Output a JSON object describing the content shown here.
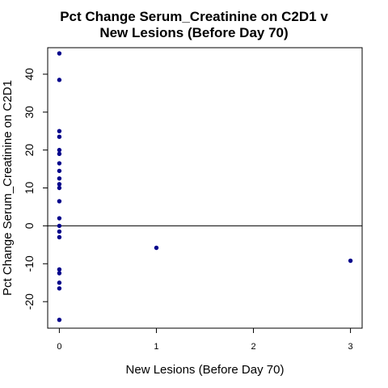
{
  "chart_data": {
    "type": "scatter",
    "title": "Pct Change Serum_Creatinine on C2D1 v\nNew Lesions (Before Day 70)",
    "xlabel": "New Lesions (Before Day 70)",
    "ylabel": "Pct Change Serum_Creatinine on C2D1",
    "xlim": [
      -0.12,
      3.12
    ],
    "ylim": [
      -27,
      47
    ],
    "x_ticks": [
      0,
      1,
      2,
      3
    ],
    "y_ticks": [
      -20,
      -10,
      0,
      10,
      20,
      30,
      40
    ],
    "reference_line_y": 0,
    "grid": false,
    "point_color": "#00008B",
    "points": [
      {
        "x": 0,
        "y": 45.5
      },
      {
        "x": 0,
        "y": 38.5
      },
      {
        "x": 0,
        "y": 25.0
      },
      {
        "x": 0,
        "y": 23.5
      },
      {
        "x": 0,
        "y": 20.0
      },
      {
        "x": 0,
        "y": 19.0
      },
      {
        "x": 0,
        "y": 16.5
      },
      {
        "x": 0,
        "y": 14.5
      },
      {
        "x": 0,
        "y": 12.5
      },
      {
        "x": 0,
        "y": 11.0
      },
      {
        "x": 0,
        "y": 10.0
      },
      {
        "x": 0,
        "y": 6.5
      },
      {
        "x": 0,
        "y": 2.0
      },
      {
        "x": 0,
        "y": 0.0
      },
      {
        "x": 0,
        "y": -1.5
      },
      {
        "x": 0,
        "y": -3.0
      },
      {
        "x": 0,
        "y": -11.5
      },
      {
        "x": 0,
        "y": -12.5
      },
      {
        "x": 0,
        "y": -15.0
      },
      {
        "x": 0,
        "y": -16.5
      },
      {
        "x": 0,
        "y": -24.8
      },
      {
        "x": 1,
        "y": -5.8
      },
      {
        "x": 3,
        "y": -9.2
      }
    ]
  }
}
